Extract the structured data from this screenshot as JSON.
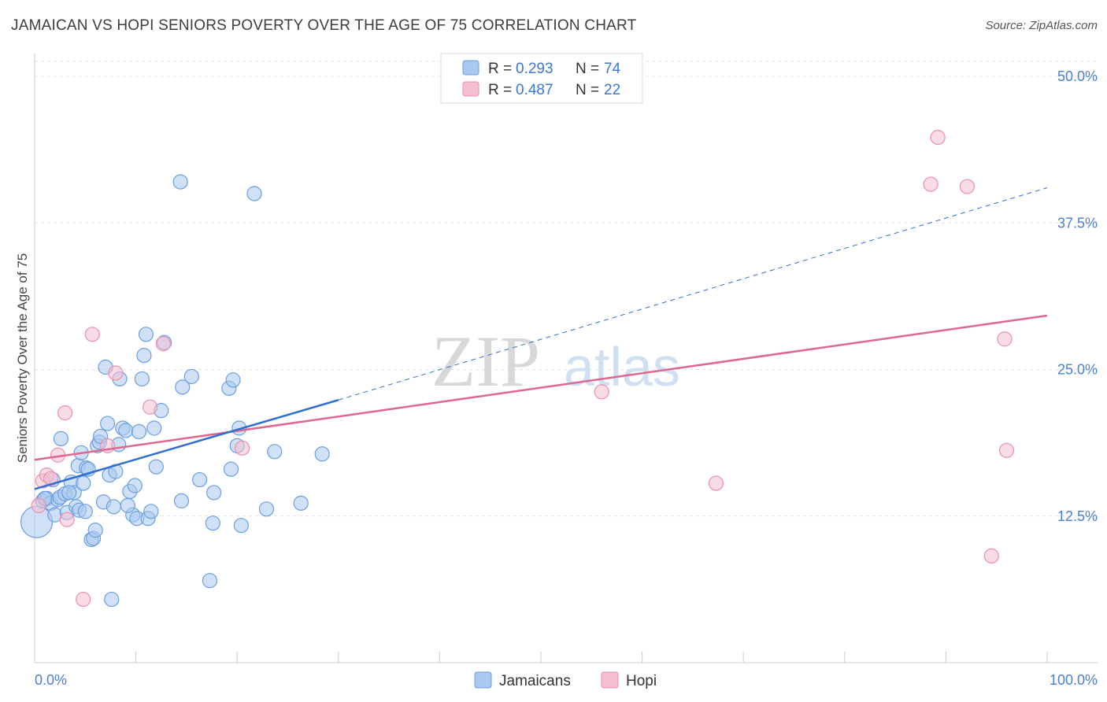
{
  "title": "JAMAICAN VS HOPI SENIORS POVERTY OVER THE AGE OF 75 CORRELATION CHART",
  "source": "Source: ZipAtlas.com",
  "watermark": {
    "zip": "ZIP",
    "atlas": "atlas"
  },
  "colors": {
    "jamaicans_fill": "#a9c8f0",
    "jamaicans_stroke": "#6b9fe0",
    "jamaicans_line": "#2f6fcf",
    "hopi_fill": "#f6bfd0",
    "hopi_stroke": "#eb8fac",
    "hopi_line": "#e0678f",
    "axis_text": "#4a7fd0"
  },
  "legend": {
    "rows": [
      {
        "r_label": "R =",
        "r_value": "0.293",
        "n_label": "N =",
        "n_value": "74"
      },
      {
        "r_label": "R =",
        "r_value": "0.487",
        "n_label": "N =",
        "n_value": "22"
      }
    ]
  },
  "bottom_legend": [
    "Jamaicans",
    "Hopi"
  ],
  "chart_data": {
    "type": "scatter",
    "title": "JAMAICAN VS HOPI SENIORS POVERTY OVER THE AGE OF 75 CORRELATION CHART",
    "xlabel": "",
    "ylabel": "Seniors Poverty Over the Age of 75",
    "xlim": [
      0,
      100
    ],
    "ylim": [
      0,
      51
    ],
    "x_tick_labels": [
      "0.0%",
      "100.0%"
    ],
    "y_ticks": [
      12.5,
      25.0,
      37.5,
      50.0
    ],
    "y_tick_labels": [
      "12.5%",
      "25.0%",
      "37.5%",
      "50.0%"
    ],
    "grid": true,
    "legend_position": "top-center",
    "series": [
      {
        "name": "Jamaicans",
        "r": 0.293,
        "n": 74,
        "trend_solid": [
          [
            0,
            14.8
          ],
          [
            30,
            22.4
          ]
        ],
        "trend_dashed": [
          [
            30,
            22.4
          ],
          [
            100,
            40.5
          ]
        ],
        "points": [
          [
            0.2,
            12.0
          ],
          [
            0.8,
            13.8
          ],
          [
            1.2,
            14.0
          ],
          [
            1.6,
            13.6
          ],
          [
            1.8,
            15.6
          ],
          [
            2.0,
            12.6
          ],
          [
            2.3,
            13.9
          ],
          [
            2.5,
            14.1
          ],
          [
            2.6,
            19.1
          ],
          [
            3.0,
            14.4
          ],
          [
            3.2,
            12.8
          ],
          [
            3.6,
            15.4
          ],
          [
            3.9,
            14.5
          ],
          [
            4.1,
            13.3
          ],
          [
            4.3,
            16.8
          ],
          [
            4.4,
            13.0
          ],
          [
            4.6,
            17.9
          ],
          [
            4.8,
            15.3
          ],
          [
            5.1,
            16.6
          ],
          [
            5.3,
            16.5
          ],
          [
            5.6,
            10.5
          ],
          [
            5.8,
            10.6
          ],
          [
            6.0,
            11.3
          ],
          [
            6.2,
            18.5
          ],
          [
            6.4,
            18.8
          ],
          [
            6.5,
            19.3
          ],
          [
            6.8,
            13.7
          ],
          [
            7.0,
            25.2
          ],
          [
            7.2,
            20.4
          ],
          [
            7.4,
            16.0
          ],
          [
            7.6,
            5.4
          ],
          [
            7.8,
            13.3
          ],
          [
            8.0,
            16.3
          ],
          [
            8.3,
            18.6
          ],
          [
            8.4,
            24.2
          ],
          [
            8.7,
            20.0
          ],
          [
            9.0,
            19.8
          ],
          [
            9.4,
            14.6
          ],
          [
            9.7,
            12.6
          ],
          [
            9.9,
            15.1
          ],
          [
            10.1,
            12.3
          ],
          [
            10.3,
            19.7
          ],
          [
            10.6,
            24.2
          ],
          [
            10.8,
            26.2
          ],
          [
            11.0,
            28.0
          ],
          [
            11.2,
            12.3
          ],
          [
            11.5,
            12.9
          ],
          [
            11.8,
            20.0
          ],
          [
            12.0,
            16.7
          ],
          [
            12.5,
            21.5
          ],
          [
            12.8,
            27.3
          ],
          [
            14.4,
            41.0
          ],
          [
            14.5,
            13.8
          ],
          [
            14.6,
            23.5
          ],
          [
            15.5,
            24.4
          ],
          [
            16.3,
            15.6
          ],
          [
            17.3,
            7.0
          ],
          [
            17.6,
            11.9
          ],
          [
            17.7,
            14.5
          ],
          [
            19.2,
            23.4
          ],
          [
            19.4,
            16.5
          ],
          [
            19.6,
            24.1
          ],
          [
            20.0,
            18.5
          ],
          [
            20.2,
            20.0
          ],
          [
            20.4,
            11.7
          ],
          [
            21.7,
            40.0
          ],
          [
            22.9,
            13.1
          ],
          [
            23.7,
            18.0
          ],
          [
            26.3,
            13.6
          ],
          [
            28.4,
            17.8
          ],
          [
            1.0,
            14.0
          ],
          [
            3.4,
            14.5
          ],
          [
            5.0,
            12.9
          ],
          [
            9.2,
            13.4
          ]
        ]
      },
      {
        "name": "Hopi",
        "r": 0.487,
        "n": 22,
        "trend_solid": [
          [
            0,
            17.3
          ],
          [
            100,
            29.6
          ]
        ],
        "points": [
          [
            0.4,
            13.4
          ],
          [
            0.8,
            15.5
          ],
          [
            1.2,
            16.0
          ],
          [
            1.6,
            15.7
          ],
          [
            2.3,
            17.7
          ],
          [
            3.0,
            21.3
          ],
          [
            3.2,
            12.2
          ],
          [
            4.8,
            5.4
          ],
          [
            5.7,
            28.0
          ],
          [
            7.2,
            18.5
          ],
          [
            8.0,
            24.7
          ],
          [
            11.4,
            21.8
          ],
          [
            12.7,
            27.2
          ],
          [
            20.5,
            18.3
          ],
          [
            56.0,
            23.1
          ],
          [
            67.3,
            15.3
          ],
          [
            88.5,
            40.8
          ],
          [
            89.2,
            44.8
          ],
          [
            92.1,
            40.6
          ],
          [
            94.5,
            9.1
          ],
          [
            95.8,
            27.6
          ],
          [
            96.0,
            18.1
          ]
        ]
      }
    ]
  }
}
